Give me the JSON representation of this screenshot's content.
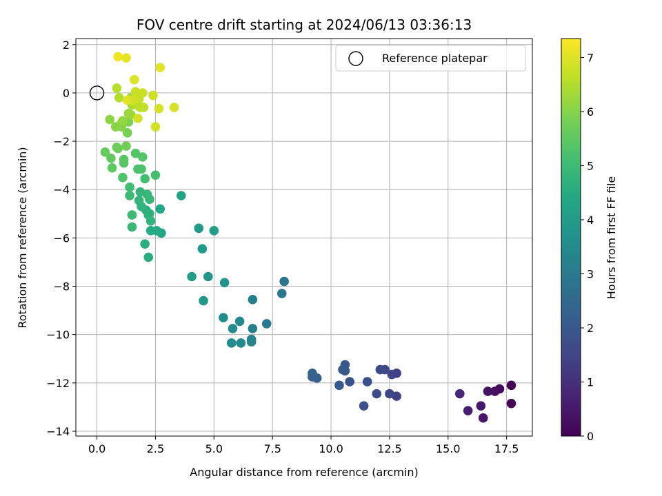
{
  "chart_data": {
    "type": "scatter",
    "title": "FOV centre drift starting at 2024/06/13 03:36:13",
    "xlabel": "Angular distance from reference (arcmin)",
    "ylabel": "Rotation from reference (arcmin)",
    "xlim": [
      -0.9,
      18.6
    ],
    "ylim": [
      -14.2,
      2.25
    ],
    "xticks": [
      0.0,
      2.5,
      5.0,
      7.5,
      10.0,
      12.5,
      15.0,
      17.5
    ],
    "xtick_labels": [
      "0.0",
      "2.5",
      "5.0",
      "7.5",
      "10.0",
      "12.5",
      "15.0",
      "17.5"
    ],
    "yticks": [
      2,
      0,
      -2,
      -4,
      -6,
      -8,
      -10,
      -12,
      -14
    ],
    "ytick_labels": [
      "2",
      "0",
      "−2",
      "−4",
      "−6",
      "−8",
      "−10",
      "−12",
      "−14"
    ],
    "grid": true,
    "colormap": "viridis",
    "colorbar": {
      "label": "Hours from first FF file",
      "range": [
        0,
        7.35
      ],
      "ticks": [
        0,
        1,
        2,
        3,
        4,
        5,
        6,
        7
      ],
      "tick_labels": [
        "0",
        "1",
        "2",
        "3",
        "4",
        "5",
        "6",
        "7"
      ]
    },
    "legend": {
      "location": "top-right",
      "entries": [
        "Reference platepar"
      ]
    },
    "reference_point": {
      "x": 0.0,
      "y": 0.0,
      "label": "Reference platepar"
    },
    "series": [
      {
        "points": [
          [
            17.7,
            -12.1,
            0.0
          ],
          [
            17.7,
            -12.85,
            0.1
          ],
          [
            17.2,
            -12.25,
            0.2
          ],
          [
            17.0,
            -12.35,
            0.3
          ],
          [
            16.7,
            -12.35,
            0.35
          ],
          [
            16.5,
            -13.45,
            0.45
          ],
          [
            16.4,
            -12.95,
            0.5
          ],
          [
            15.85,
            -13.15,
            0.6
          ],
          [
            15.5,
            -12.45,
            0.8
          ],
          [
            12.8,
            -11.6,
            1.35
          ],
          [
            12.8,
            -12.55,
            1.4
          ],
          [
            12.6,
            -11.65,
            1.5
          ],
          [
            12.5,
            -12.45,
            1.55
          ],
          [
            12.3,
            -11.45,
            1.6
          ],
          [
            12.1,
            -11.45,
            1.65
          ],
          [
            11.95,
            -12.45,
            1.7
          ],
          [
            11.55,
            -11.95,
            1.75
          ],
          [
            11.4,
            -12.95,
            1.8
          ],
          [
            10.8,
            -11.95,
            1.9
          ],
          [
            10.6,
            -11.25,
            1.95
          ],
          [
            10.6,
            -11.5,
            2.0
          ],
          [
            10.5,
            -11.45,
            2.05
          ],
          [
            10.35,
            -12.1,
            2.1
          ],
          [
            9.4,
            -11.8,
            2.2
          ],
          [
            9.2,
            -11.6,
            2.25
          ],
          [
            9.2,
            -11.75,
            2.3
          ],
          [
            8.0,
            -7.8,
            2.85
          ],
          [
            7.9,
            -8.3,
            2.9
          ],
          [
            7.25,
            -9.55,
            3.0
          ],
          [
            6.65,
            -8.55,
            3.15
          ],
          [
            6.65,
            -9.75,
            3.2
          ],
          [
            6.6,
            -10.2,
            3.25
          ],
          [
            6.6,
            -10.3,
            3.3
          ],
          [
            6.1,
            -9.45,
            3.4
          ],
          [
            6.15,
            -10.35,
            3.45
          ],
          [
            5.8,
            -9.75,
            3.5
          ],
          [
            5.75,
            -10.35,
            3.55
          ],
          [
            5.4,
            -9.3,
            3.6
          ],
          [
            5.45,
            -7.85,
            3.7
          ],
          [
            4.75,
            -7.6,
            3.8
          ],
          [
            4.55,
            -8.6,
            3.9
          ],
          [
            4.5,
            -6.45,
            3.95
          ],
          [
            4.35,
            -5.6,
            4.0
          ],
          [
            4.05,
            -7.6,
            4.05
          ],
          [
            5.0,
            -5.7,
            4.1
          ],
          [
            3.6,
            -4.25,
            4.25
          ],
          [
            2.75,
            -5.8,
            4.35
          ],
          [
            2.7,
            -4.8,
            4.4
          ],
          [
            2.55,
            -5.7,
            4.45
          ],
          [
            2.3,
            -5.7,
            4.5
          ],
          [
            2.2,
            -6.8,
            4.55
          ],
          [
            2.05,
            -6.25,
            4.6
          ],
          [
            2.1,
            -4.85,
            4.65
          ],
          [
            2.2,
            -5.05,
            4.65
          ],
          [
            2.25,
            -5.0,
            4.7
          ],
          [
            2.3,
            -5.3,
            4.75
          ],
          [
            1.9,
            -4.7,
            4.75
          ],
          [
            1.8,
            -4.45,
            4.8
          ],
          [
            1.85,
            -4.1,
            4.8
          ],
          [
            2.15,
            -4.2,
            4.85
          ],
          [
            2.25,
            -4.4,
            4.85
          ],
          [
            1.5,
            -5.55,
            4.9
          ],
          [
            1.5,
            -5.05,
            4.95
          ],
          [
            1.4,
            -4.25,
            5.0
          ],
          [
            1.4,
            -3.9,
            5.05
          ],
          [
            2.05,
            -3.55,
            5.1
          ],
          [
            2.5,
            -3.4,
            5.15
          ],
          [
            1.75,
            -3.15,
            5.2
          ],
          [
            1.9,
            -3.15,
            5.25
          ],
          [
            1.1,
            -3.5,
            5.3
          ],
          [
            1.65,
            -2.5,
            5.35
          ],
          [
            1.95,
            -2.65,
            5.35
          ],
          [
            1.15,
            -2.9,
            5.4
          ],
          [
            1.15,
            -2.75,
            5.45
          ],
          [
            0.65,
            -3.1,
            5.5
          ],
          [
            0.6,
            -2.7,
            5.55
          ],
          [
            0.35,
            -2.45,
            5.6
          ],
          [
            0.9,
            -2.3,
            5.65
          ],
          [
            0.85,
            -2.25,
            5.7
          ],
          [
            1.25,
            -2.2,
            5.75
          ],
          [
            1.3,
            -1.65,
            5.85
          ],
          [
            1.35,
            -1.2,
            5.9
          ],
          [
            1.05,
            -1.25,
            5.95
          ],
          [
            1.05,
            -1.4,
            6.0
          ],
          [
            0.8,
            -1.4,
            6.05
          ],
          [
            0.55,
            -1.1,
            6.1
          ],
          [
            1.1,
            -1.15,
            6.15
          ],
          [
            1.35,
            -0.85,
            6.2
          ],
          [
            1.45,
            -0.9,
            6.25
          ],
          [
            1.5,
            -0.5,
            6.3
          ],
          [
            1.45,
            -0.2,
            6.35
          ],
          [
            1.75,
            -0.5,
            6.4
          ],
          [
            1.8,
            -0.55,
            6.45
          ],
          [
            0.95,
            -0.2,
            6.5
          ],
          [
            0.85,
            0.2,
            6.55
          ],
          [
            1.6,
            -0.45,
            6.55
          ],
          [
            1.85,
            -0.6,
            6.6
          ],
          [
            2.0,
            -0.6,
            6.65
          ],
          [
            1.7,
            -0.2,
            6.65
          ],
          [
            1.75,
            -0.1,
            6.7
          ],
          [
            1.8,
            -0.25,
            6.7
          ],
          [
            1.95,
            0.0,
            6.75
          ],
          [
            1.65,
            0.05,
            6.75
          ],
          [
            1.55,
            -0.3,
            6.8
          ],
          [
            2.4,
            -0.1,
            6.8
          ],
          [
            1.75,
            -1.05,
            6.85
          ],
          [
            2.5,
            -1.4,
            6.85
          ],
          [
            2.65,
            -0.65,
            6.9
          ],
          [
            3.3,
            -0.6,
            6.9
          ],
          [
            1.6,
            0.55,
            6.95
          ],
          [
            1.3,
            -0.3,
            7.0
          ],
          [
            2.7,
            1.05,
            7.05
          ],
          [
            1.25,
            1.45,
            7.1
          ],
          [
            0.9,
            1.5,
            7.2
          ]
        ]
      }
    ]
  }
}
